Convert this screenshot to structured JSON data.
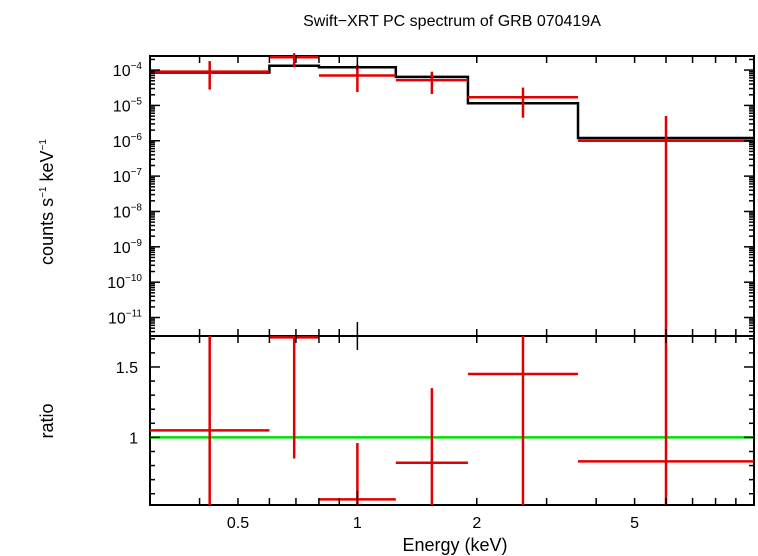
{
  "chart_data": {
    "type": "line",
    "title": "Swift−XRT PC spectrum of GRB 070419A",
    "xlabel": "Energy (keV)",
    "x_scale": "log",
    "xlim": [
      0.3,
      10
    ],
    "x_ticks": [
      {
        "value": 0.5,
        "label": "0.5"
      },
      {
        "value": 1,
        "label": "1"
      },
      {
        "value": 2,
        "label": "2"
      },
      {
        "value": 5,
        "label": "5"
      }
    ],
    "colors": {
      "data": "#e00000",
      "model": "#000000",
      "unity": "#00e000"
    },
    "top_panel": {
      "ylabel": "counts s⁻¹ keV⁻¹",
      "ylabel_base": "counts s",
      "ylabel_exp1": "−1",
      "ylabel_mid": " keV",
      "ylabel_exp2": "−1",
      "y_scale": "log",
      "ylim": [
        3e-12,
        0.00025
      ],
      "y_ticks": [
        {
          "value": 0.0001,
          "base": "10",
          "exp": "−4"
        },
        {
          "value": 1e-05,
          "base": "10",
          "exp": "−5"
        },
        {
          "value": 1e-06,
          "base": "10",
          "exp": "−6"
        },
        {
          "value": 1e-07,
          "base": "10",
          "exp": "−7"
        },
        {
          "value": 1e-08,
          "base": "10",
          "exp": "−8"
        },
        {
          "value": 1e-09,
          "base": "10",
          "exp": "−9"
        },
        {
          "value": 1e-10,
          "base": "10",
          "exp": "−10"
        },
        {
          "value": 1e-11,
          "base": "10",
          "exp": "−11"
        }
      ],
      "data": [
        {
          "xlo": 0.3,
          "xhi": 0.6,
          "y": 9e-05,
          "ylo": 2.8e-05,
          "yhi": 0.00018
        },
        {
          "xlo": 0.6,
          "xhi": 0.8,
          "y": 0.00023,
          "ylo": 0.00012,
          "yhi": 0.0003
        },
        {
          "xlo": 0.8,
          "xhi": 1.25,
          "y": 7e-05,
          "ylo": 2.4e-05,
          "yhi": 0.00014
        },
        {
          "xlo": 1.25,
          "xhi": 1.9,
          "y": 5.2e-05,
          "ylo": 2.1e-05,
          "yhi": 9e-05
        },
        {
          "xlo": 1.9,
          "xhi": 3.6,
          "y": 1.7e-05,
          "ylo": 4.5e-06,
          "yhi": 3.2e-05
        },
        {
          "xlo": 3.6,
          "xhi": 10,
          "y": 1e-06,
          "ylo": 3e-12,
          "yhi": 5e-06
        }
      ],
      "model": [
        {
          "xlo": 0.3,
          "xhi": 0.6,
          "y": 8.5e-05
        },
        {
          "xlo": 0.6,
          "xhi": 0.8,
          "y": 0.000132
        },
        {
          "xlo": 0.8,
          "xhi": 1.25,
          "y": 0.00012
        },
        {
          "xlo": 1.25,
          "xhi": 1.9,
          "y": 6.4e-05
        },
        {
          "xlo": 1.9,
          "xhi": 3.6,
          "y": 1.15e-05
        },
        {
          "xlo": 3.6,
          "xhi": 10,
          "y": 1.2e-06
        }
      ]
    },
    "bottom_panel": {
      "ylabel": "ratio",
      "y_scale": "linear",
      "ylim": [
        0.52,
        1.72
      ],
      "y_ticks": [
        {
          "value": 1,
          "label": "1"
        },
        {
          "value": 1.5,
          "label": "1.5"
        }
      ],
      "reference_line": 1,
      "data": [
        {
          "xlo": 0.3,
          "xhi": 0.6,
          "y": 1.05,
          "ylo": 0.52,
          "yhi": 1.72
        },
        {
          "xlo": 0.6,
          "xhi": 0.8,
          "y": 1.71,
          "ylo": 0.85,
          "yhi": 1.72
        },
        {
          "xlo": 0.8,
          "xhi": 1.25,
          "y": 0.56,
          "ylo": 0.52,
          "yhi": 0.96
        },
        {
          "xlo": 1.25,
          "xhi": 1.9,
          "y": 0.82,
          "ylo": 0.52,
          "yhi": 1.35
        },
        {
          "xlo": 1.9,
          "xhi": 3.6,
          "y": 1.45,
          "ylo": 0.52,
          "yhi": 1.72
        },
        {
          "xlo": 3.6,
          "xhi": 10,
          "y": 0.83,
          "ylo": 0.52,
          "yhi": 1.72
        }
      ]
    }
  }
}
